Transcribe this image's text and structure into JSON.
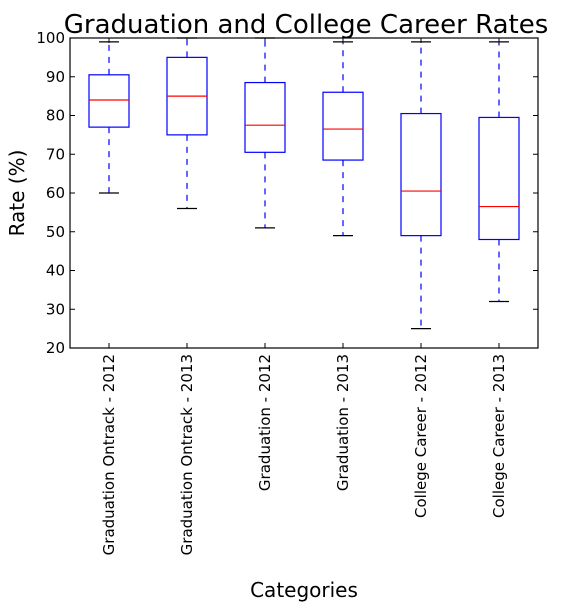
{
  "chart_data": {
    "type": "box",
    "title": "Graduation and College Career Rates",
    "xlabel": "Categories",
    "ylabel": "Rate (%)",
    "ylim": [
      20,
      100
    ],
    "yticks": [
      20,
      30,
      40,
      50,
      60,
      70,
      80,
      90,
      100
    ],
    "grid": false,
    "colors": {
      "box": "#0000ff",
      "median": "#ff0000",
      "whisker": "#0000ff",
      "cap": "#000000",
      "frame": "#000000"
    },
    "categories": [
      "Graduation Ontrack - 2012",
      "Graduation Ontrack - 2013",
      "Graduation - 2012",
      "Graduation - 2013",
      "College Career - 2012",
      "College Career - 2013"
    ],
    "boxes": [
      {
        "whislo": 60,
        "q1": 77,
        "med": 84,
        "q3": 90.5,
        "whishi": 99
      },
      {
        "whislo": 56,
        "q1": 75,
        "med": 85,
        "q3": 95,
        "whishi": 100
      },
      {
        "whislo": 51,
        "q1": 70.5,
        "med": 77.5,
        "q3": 88.5,
        "whishi": 100
      },
      {
        "whislo": 49,
        "q1": 68.5,
        "med": 76.5,
        "q3": 86,
        "whishi": 99
      },
      {
        "whislo": 25,
        "q1": 49,
        "med": 60.5,
        "q3": 80.5,
        "whishi": 99
      },
      {
        "whislo": 32,
        "q1": 48,
        "med": 56.5,
        "q3": 79.5,
        "whishi": 99
      }
    ]
  }
}
